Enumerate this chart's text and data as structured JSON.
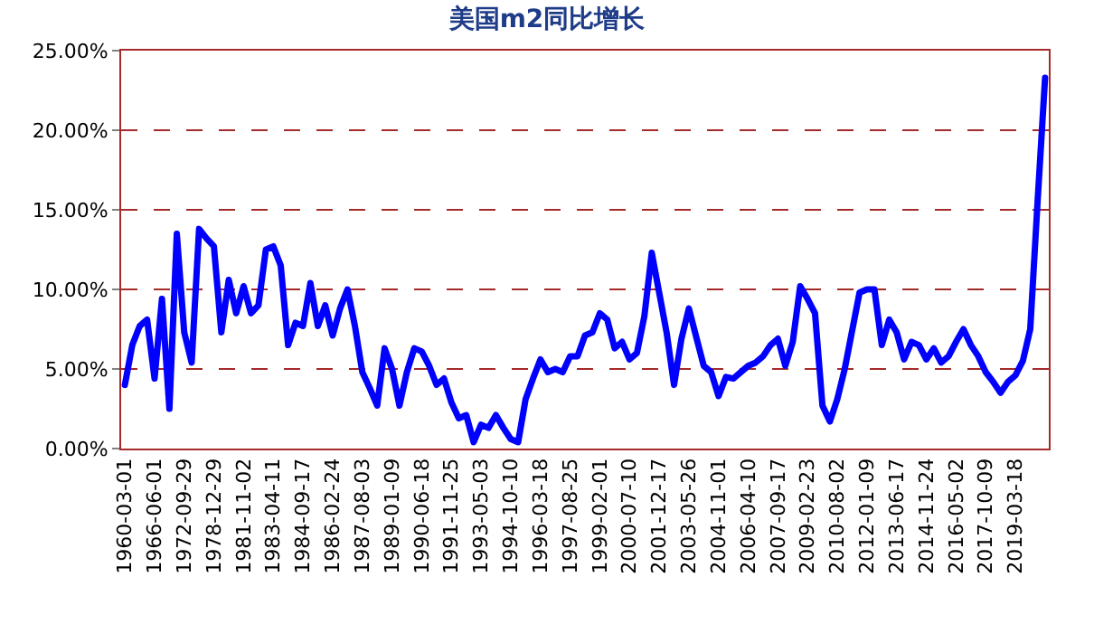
{
  "chart_data": {
    "type": "line",
    "title": "美国m2同比增长",
    "categories": [
      "1960-03-01",
      null,
      null,
      null,
      "1966-06-01",
      null,
      null,
      null,
      "1972-09-29",
      null,
      null,
      null,
      "1978-12-29",
      null,
      null,
      null,
      "1981-11-02",
      null,
      null,
      null,
      "1983-04-11",
      null,
      null,
      null,
      "1984-09-17",
      null,
      null,
      null,
      "1986-02-24",
      null,
      null,
      null,
      "1987-08-03",
      null,
      null,
      null,
      "1989-01-09",
      null,
      null,
      null,
      "1990-06-18",
      null,
      null,
      null,
      "1991-11-25",
      null,
      null,
      null,
      "1993-05-03",
      null,
      null,
      null,
      "1994-10-10",
      null,
      null,
      null,
      "1996-03-18",
      null,
      null,
      null,
      "1997-08-25",
      null,
      null,
      null,
      "1999-02-01",
      null,
      null,
      null,
      "2000-07-10",
      null,
      null,
      null,
      "2001-12-17",
      null,
      null,
      null,
      "2003-05-26",
      null,
      null,
      null,
      "2004-11-01",
      null,
      null,
      null,
      "2006-04-10",
      null,
      null,
      null,
      "2007-09-17",
      null,
      null,
      null,
      "2009-02-23",
      null,
      null,
      null,
      "2010-08-02",
      null,
      null,
      null,
      "2012-01-09",
      null,
      null,
      null,
      "2013-06-17",
      null,
      null,
      null,
      "2014-11-24",
      null,
      null,
      null,
      "2016-05-02",
      null,
      null,
      null,
      "2017-10-09",
      null,
      null,
      null,
      "2019-03-18",
      null,
      null,
      null,
      null
    ],
    "series": [
      {
        "color": "#0000ff",
        "values": [
          4.0,
          6.5,
          7.7,
          8.1,
          4.4,
          9.4,
          2.5,
          13.5,
          7.3,
          5.4,
          13.8,
          13.2,
          12.7,
          7.3,
          10.6,
          8.5,
          10.2,
          8.5,
          9.0,
          12.5,
          12.7,
          11.5,
          6.5,
          7.9,
          7.7,
          10.4,
          7.7,
          9.0,
          7.1,
          8.8,
          10.0,
          7.7,
          4.8,
          3.8,
          2.7,
          6.3,
          5.0,
          2.7,
          4.8,
          6.3,
          6.1,
          5.2,
          4.0,
          4.4,
          2.9,
          1.9,
          2.1,
          0.4,
          1.5,
          1.3,
          2.1,
          1.3,
          0.6,
          0.4,
          3.1,
          4.4,
          5.6,
          4.8,
          5.0,
          4.8,
          5.8,
          5.8,
          7.1,
          7.3,
          8.5,
          8.1,
          6.3,
          6.7,
          5.6,
          6.0,
          8.3,
          12.3,
          9.8,
          7.3,
          4.0,
          6.9,
          8.8,
          7.0,
          5.2,
          4.8,
          3.3,
          4.5,
          4.4,
          4.8,
          5.2,
          5.4,
          5.8,
          6.5,
          6.9,
          5.2,
          6.7,
          10.2,
          9.4,
          8.5,
          2.7,
          1.7,
          3.1,
          5.0,
          7.4,
          9.8,
          10.0,
          10.0,
          6.5,
          8.1,
          7.3,
          5.6,
          6.7,
          6.5,
          5.6,
          6.3,
          5.4,
          5.8,
          6.7,
          7.5,
          6.5,
          5.8,
          4.8,
          4.2,
          3.5,
          4.2,
          4.6,
          5.5,
          7.5,
          15.6,
          23.3
        ]
      }
    ],
    "ylim": [
      0,
      25
    ],
    "yticks": [
      {
        "value": 0,
        "label": "0.00%"
      },
      {
        "value": 5,
        "label": "5.00%"
      },
      {
        "value": 10,
        "label": "10.00%"
      },
      {
        "value": 15,
        "label": "15.00%"
      },
      {
        "value": 20,
        "label": "20.00%"
      },
      {
        "value": 25,
        "label": "25.00%"
      }
    ],
    "grid": "y",
    "line_style": "solid"
  }
}
